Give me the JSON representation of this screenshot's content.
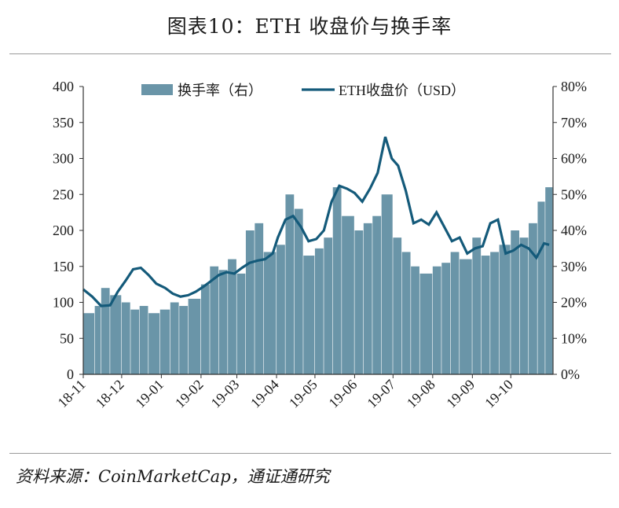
{
  "title": "图表10：ETH 收盘价与换手率",
  "source": "资料来源：CoinMarketCap，通证通研究",
  "chart_data": {
    "type": "bar+line",
    "colors": {
      "bar": "#6a95a8",
      "line": "#145a7a"
    },
    "legend": {
      "placement": "top-center",
      "bar_label": "换手率（右）",
      "line_label": "ETH收盘价（USD）"
    },
    "x_tick_labels": [
      "18-11",
      "18-12",
      "19-01",
      "19-02",
      "19-03",
      "19-04",
      "19-05",
      "19-06",
      "19-07",
      "19-08",
      "19-09",
      "19-10"
    ],
    "y_left": {
      "ticks": [
        0,
        50,
        100,
        150,
        200,
        250,
        300,
        350,
        400
      ],
      "range": [
        0,
        400
      ],
      "unit": "USD"
    },
    "y_right": {
      "ticks": [
        "0%",
        "10%",
        "20%",
        "30%",
        "40%",
        "50%",
        "60%",
        "70%",
        "80%"
      ],
      "range": [
        0,
        80
      ],
      "unit": "%"
    },
    "grid": false,
    "series": [
      {
        "name": "换手率（右）",
        "type": "bar",
        "axis": "right",
        "points": [
          [
            "2018-11-01",
            17
          ],
          [
            "2018-11-10",
            19
          ],
          [
            "2018-11-15",
            24
          ],
          [
            "2018-11-22",
            22
          ],
          [
            "2018-12-01",
            20
          ],
          [
            "2018-12-08",
            18
          ],
          [
            "2018-12-15",
            19
          ],
          [
            "2018-12-22",
            17
          ],
          [
            "2018-12-31",
            18
          ],
          [
            "2019-01-08",
            20
          ],
          [
            "2019-01-15",
            19
          ],
          [
            "2019-01-22",
            21
          ],
          [
            "2019-02-01",
            25
          ],
          [
            "2019-02-08",
            30
          ],
          [
            "2019-02-15",
            29
          ],
          [
            "2019-02-22",
            32
          ],
          [
            "2019-03-01",
            28
          ],
          [
            "2019-03-08",
            40
          ],
          [
            "2019-03-15",
            42
          ],
          [
            "2019-03-22",
            34
          ],
          [
            "2019-04-01",
            36
          ],
          [
            "2019-04-08",
            50
          ],
          [
            "2019-04-15",
            46
          ],
          [
            "2019-04-22",
            33
          ],
          [
            "2019-05-01",
            35
          ],
          [
            "2019-05-08",
            38
          ],
          [
            "2019-05-15",
            52
          ],
          [
            "2019-05-22",
            44
          ],
          [
            "2019-06-01",
            40
          ],
          [
            "2019-06-08",
            42
          ],
          [
            "2019-06-15",
            44
          ],
          [
            "2019-06-22",
            50
          ],
          [
            "2019-07-01",
            38
          ],
          [
            "2019-07-08",
            34
          ],
          [
            "2019-07-15",
            30
          ],
          [
            "2019-07-22",
            28
          ],
          [
            "2019-08-01",
            30
          ],
          [
            "2019-08-08",
            31
          ],
          [
            "2019-08-15",
            34
          ],
          [
            "2019-08-22",
            32
          ],
          [
            "2019-09-01",
            38
          ],
          [
            "2019-09-08",
            33
          ],
          [
            "2019-09-15",
            34
          ],
          [
            "2019-09-22",
            36
          ],
          [
            "2019-10-01",
            40
          ],
          [
            "2019-10-08",
            38
          ],
          [
            "2019-10-15",
            42
          ],
          [
            "2019-10-22",
            48
          ],
          [
            "2019-10-28",
            52
          ]
        ]
      },
      {
        "name": "ETH收盘价（USD）",
        "type": "line",
        "axis": "left",
        "points": [
          [
            "2018-11-01",
            118
          ],
          [
            "2018-11-08",
            108
          ],
          [
            "2018-11-15",
            95
          ],
          [
            "2018-11-22",
            96
          ],
          [
            "2018-11-28",
            115
          ],
          [
            "2018-12-04",
            130
          ],
          [
            "2018-12-10",
            146
          ],
          [
            "2018-12-16",
            148
          ],
          [
            "2018-12-22",
            138
          ],
          [
            "2018-12-28",
            126
          ],
          [
            "2019-01-04",
            120
          ],
          [
            "2019-01-10",
            112
          ],
          [
            "2019-01-16",
            108
          ],
          [
            "2019-01-22",
            110
          ],
          [
            "2019-01-28",
            115
          ],
          [
            "2019-02-03",
            122
          ],
          [
            "2019-02-09",
            130
          ],
          [
            "2019-02-15",
            138
          ],
          [
            "2019-02-21",
            142
          ],
          [
            "2019-02-27",
            140
          ],
          [
            "2019-03-05",
            148
          ],
          [
            "2019-03-11",
            155
          ],
          [
            "2019-03-17",
            158
          ],
          [
            "2019-03-23",
            160
          ],
          [
            "2019-03-29",
            168
          ],
          [
            "2019-04-02",
            190
          ],
          [
            "2019-04-08",
            215
          ],
          [
            "2019-04-14",
            220
          ],
          [
            "2019-04-20",
            205
          ],
          [
            "2019-04-26",
            185
          ],
          [
            "2019-05-02",
            188
          ],
          [
            "2019-05-08",
            200
          ],
          [
            "2019-05-14",
            240
          ],
          [
            "2019-05-20",
            262
          ],
          [
            "2019-05-26",
            258
          ],
          [
            "2019-06-01",
            252
          ],
          [
            "2019-06-07",
            240
          ],
          [
            "2019-06-13",
            258
          ],
          [
            "2019-06-19",
            280
          ],
          [
            "2019-06-25",
            330
          ],
          [
            "2019-06-30",
            300
          ],
          [
            "2019-07-05",
            290
          ],
          [
            "2019-07-11",
            255
          ],
          [
            "2019-07-17",
            210
          ],
          [
            "2019-07-23",
            215
          ],
          [
            "2019-07-29",
            208
          ],
          [
            "2019-08-04",
            225
          ],
          [
            "2019-08-10",
            205
          ],
          [
            "2019-08-16",
            185
          ],
          [
            "2019-08-22",
            190
          ],
          [
            "2019-08-28",
            168
          ],
          [
            "2019-09-03",
            175
          ],
          [
            "2019-09-09",
            178
          ],
          [
            "2019-09-15",
            210
          ],
          [
            "2019-09-21",
            215
          ],
          [
            "2019-09-27",
            168
          ],
          [
            "2019-10-03",
            172
          ],
          [
            "2019-10-09",
            180
          ],
          [
            "2019-10-15",
            175
          ],
          [
            "2019-10-21",
            162
          ],
          [
            "2019-10-27",
            182
          ],
          [
            "2019-10-31",
            180
          ]
        ]
      }
    ]
  }
}
